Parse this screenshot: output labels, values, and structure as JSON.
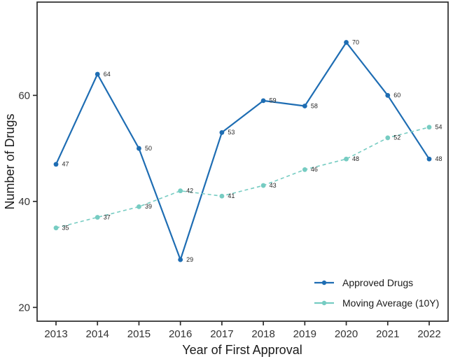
{
  "page": {
    "background_color": "#FFFFFF"
  },
  "chart_data": {
    "type": "line",
    "xlabel": "Year of First Approval",
    "ylabel": "Number of Drugs",
    "x": [
      2013,
      2014,
      2015,
      2016,
      2017,
      2018,
      2019,
      2020,
      2021,
      2022
    ],
    "xtick_labels": [
      "2013",
      "2014",
      "2015",
      "2016",
      "2017",
      "2018",
      "2019",
      "2020",
      "2021",
      "2022"
    ],
    "yticks": [
      20,
      40,
      60
    ],
    "ylim": [
      17.4,
      77.6
    ],
    "grid": false,
    "point_labels_shown": true,
    "series": [
      {
        "name": "Approved Drugs",
        "values": [
          47,
          64,
          50,
          29,
          53,
          59,
          58,
          70,
          60,
          48
        ],
        "color": "#1E6DB3",
        "line_style": "solid",
        "marker": "circle"
      },
      {
        "name": "Moving Average (10Y)",
        "values": [
          35,
          37,
          39,
          42,
          41,
          43,
          46,
          48,
          52,
          54
        ],
        "color": "#76CCC2",
        "line_style": "dashed",
        "marker": "circle"
      }
    ],
    "legend": {
      "position": "inside-bottom-right"
    },
    "colors": {
      "axis": "#2B2B2B",
      "tick_text": "#333333",
      "axis_label_text": "#1A1A1A",
      "point_label_text": "#262626"
    }
  }
}
